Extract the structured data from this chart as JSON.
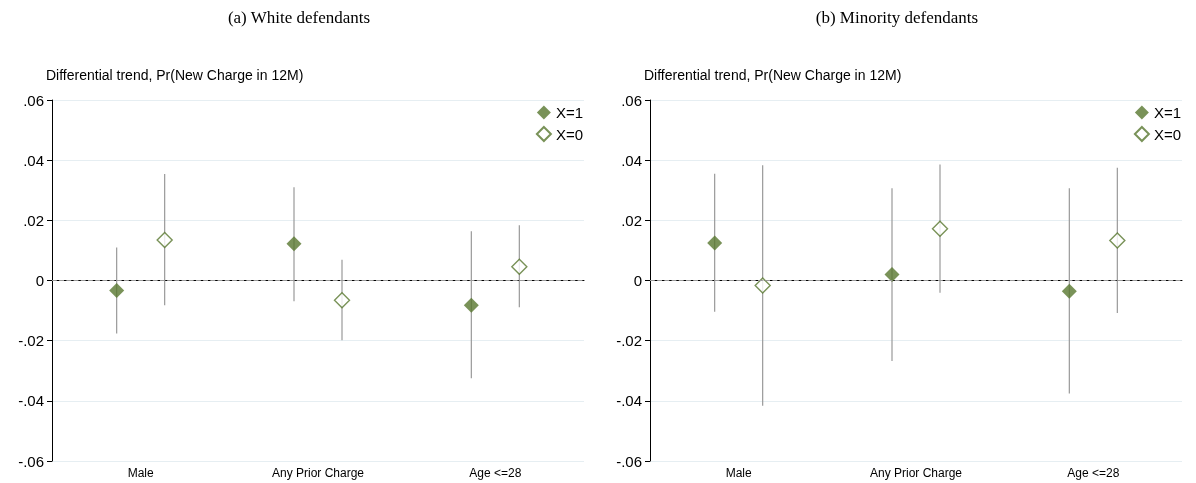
{
  "chart_data": [
    {
      "type": "scatter",
      "title": "(a) White defendants",
      "ylabel": "Differential trend, Pr(New Charge in 12M)",
      "categories": [
        "Male",
        "Any Prior Charge",
        "Age <=28"
      ],
      "series": [
        {
          "name": "X=1",
          "color": "#58772e",
          "values": [
            -0.0033,
            0.0122,
            -0.0082
          ],
          "errors": [
            [
              -0.0176,
              0.011
            ],
            [
              -0.0069,
              0.031
            ],
            [
              -0.0325,
              0.0164
            ]
          ]
        },
        {
          "name": "X=0",
          "color": "#58772e",
          "values": [
            0.0135,
            -0.0066,
            0.0046
          ],
          "errors": [
            [
              -0.0082,
              0.0354
            ],
            [
              -0.0199,
              0.0069
            ],
            [
              -0.0089,
              0.0184
            ]
          ]
        }
      ],
      "ylim": [
        -0.06,
        0.06
      ],
      "yticks": [
        {
          "value": -0.06,
          "label": "-.06"
        },
        {
          "value": -0.04,
          "label": "-.04"
        },
        {
          "value": -0.02,
          "label": "-.02"
        },
        0,
        {
          "value": 0.02,
          "label": ".02"
        },
        {
          "value": 0.04,
          "label": ".04"
        },
        {
          "value": 0.06,
          "label": ".06"
        }
      ],
      "ref_lines": [
        {
          "axis": "y",
          "value": 0,
          "color": "#9a9a9a",
          "line_style": "dashed"
        }
      ],
      "grid": "y",
      "legend": "top right",
      "marker": "diamond"
    },
    {
      "type": "scatter",
      "title": "(b) Minority defendants",
      "ylabel": "Differential trend, Pr(New Charge in 12M)",
      "categories": [
        "Male",
        "Any Prior Charge",
        "Age <=28"
      ],
      "series": [
        {
          "name": "X=1",
          "color": "#58772e",
          "values": [
            0.0125,
            0.002,
            -0.0036
          ],
          "errors": [
            [
              -0.0104,
              0.0355
            ],
            [
              -0.0268,
              0.0307
            ],
            [
              -0.0376,
              0.0307
            ]
          ]
        },
        {
          "name": "X=0",
          "color": "#58772e",
          "values": [
            -0.0017,
            0.0172,
            0.0133
          ],
          "errors": [
            [
              -0.0416,
              0.0383
            ],
            [
              -0.0041,
              0.0386
            ],
            [
              -0.0108,
              0.0375
            ]
          ]
        }
      ],
      "ylim": [
        -0.06,
        0.06
      ],
      "yticks": [
        {
          "value": -0.06,
          "label": "-.06"
        },
        {
          "value": -0.04,
          "label": "-.04"
        },
        {
          "value": -0.02,
          "label": "-.02"
        },
        0,
        {
          "value": 0.02,
          "label": ".02"
        },
        {
          "value": 0.04,
          "label": ".04"
        },
        {
          "value": 0.06,
          "label": ".06"
        }
      ],
      "ref_lines": [
        {
          "axis": "y",
          "value": 0,
          "color": "#9a9a9a",
          "line_style": "dashed"
        }
      ],
      "grid": "y",
      "legend": "top right",
      "marker": "diamond"
    }
  ]
}
